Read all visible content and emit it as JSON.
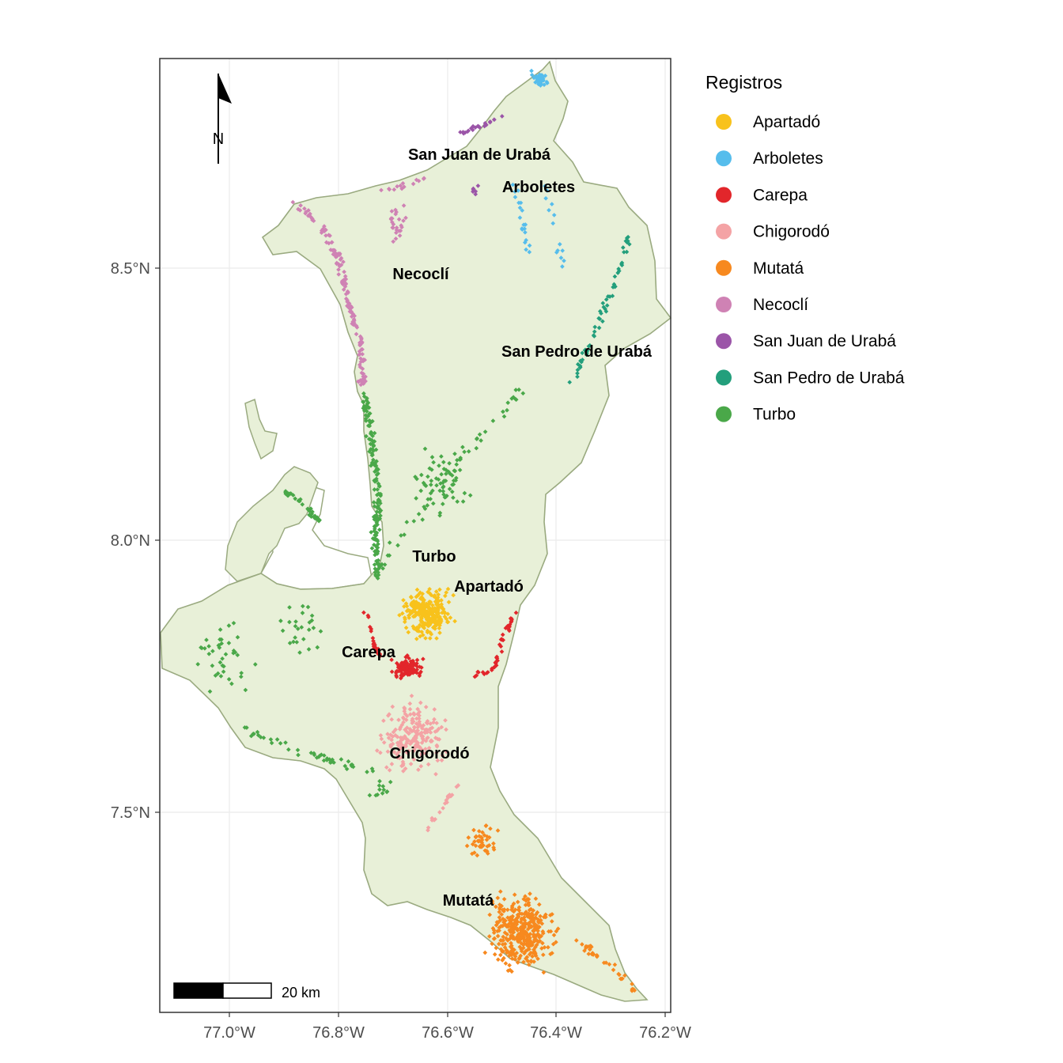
{
  "map": {
    "x_axis": {
      "ticks": [
        "77.0°W",
        "76.8°W",
        "76.6°W",
        "76.4°W",
        "76.2°W"
      ]
    },
    "y_axis": {
      "ticks": [
        "8.5°N",
        "8.0°N",
        "7.5°N"
      ]
    },
    "north_arrow": "N",
    "scale_bar": "20 km",
    "land_color": "#e8f0d8",
    "border_color": "#9aaa80",
    "municipalities": [
      "San Juan de Urabá",
      "Arboletes",
      "Necoclí",
      "San Pedro de Urabá",
      "Turbo",
      "Apartadó",
      "Carepa",
      "Chigorodó",
      "Mutatá"
    ]
  },
  "legend": {
    "title": "Registros",
    "items": [
      {
        "label": "Apartadó",
        "color": "#f8c21c"
      },
      {
        "label": "Arboletes",
        "color": "#56bdec"
      },
      {
        "label": "Carepa",
        "color": "#e2262b"
      },
      {
        "label": "Chigorodó",
        "color": "#f4a3a5"
      },
      {
        "label": "Mutatá",
        "color": "#f7891f"
      },
      {
        "label": "Necoclí",
        "color": "#cf82b4"
      },
      {
        "label": "San Juan de Urabá",
        "color": "#9b55a8"
      },
      {
        "label": "San Pedro de Urabá",
        "color": "#239f7c"
      },
      {
        "label": "Turbo",
        "color": "#4aa849"
      }
    ]
  }
}
